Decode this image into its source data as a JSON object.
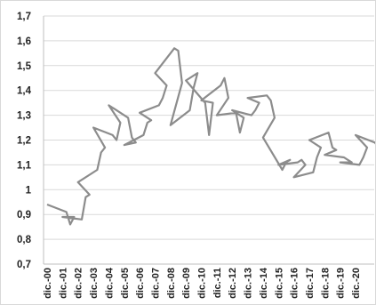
{
  "chart_data": {
    "type": "line",
    "title": "",
    "xlabel": "",
    "ylabel": "",
    "ylim": [
      0.7,
      1.7
    ],
    "yticks": [
      "0,7",
      "0,8",
      "0,9",
      "1",
      "1,1",
      "1,2",
      "1,3",
      "1,4",
      "1,5",
      "1,6",
      "1,7"
    ],
    "grid": "horizontal",
    "legend": "none",
    "line_color": "#8c8c8c",
    "x_tick_labels": [
      "dic.-00",
      "dic.-01",
      "dic.-02",
      "dic.-03",
      "dic.-04",
      "dic.-05",
      "dic.-06",
      "dic.-07",
      "dic.-08",
      "dic.-09",
      "dic.-10",
      "dic.-11",
      "dic.-12",
      "dic.-13",
      "dic.-14",
      "dic.-15",
      "dic.-16",
      "dic.-17",
      "dic.-18",
      "dic.-19",
      "dic.-20"
    ],
    "series": [
      {
        "x": [
          "dic.-00",
          "mar.-01",
          "jun.-01",
          "sep.-01",
          "dic.-01",
          "mar.-02",
          "jun.-02",
          "sep.-02",
          "dic.-02",
          "mar.-03",
          "jun.-03",
          "sep.-03",
          "dic.-03",
          "mar.-04",
          "jun.-04",
          "sep.-04",
          "dic.-04",
          "mar.-05",
          "jun.-05",
          "sep.-05",
          "dic.-05",
          "mar.-06",
          "jun.-06",
          "sep.-06",
          "dic.-06",
          "mar.-07",
          "jun.-07",
          "sep.-07",
          "dic.-07",
          "mar.-08",
          "jun.-08",
          "sep.-08",
          "dic.-08",
          "mar.-09",
          "jun.-09",
          "sep.-09",
          "dic.-09",
          "mar.-10",
          "jun.-10",
          "sep.-10",
          "dic.-10",
          "mar.-11",
          "jun.-11",
          "sep.-11",
          "dic.-11",
          "mar.-12",
          "jun.-12",
          "sep.-12",
          "dic.-12",
          "mar.-13",
          "jun.-13",
          "sep.-13",
          "dic.-13",
          "mar.-14",
          "jun.-14",
          "sep.-14",
          "dic.-14",
          "mar.-15",
          "jun.-15",
          "sep.-15",
          "dic.-15",
          "mar.-16",
          "jun.-16",
          "sep.-16",
          "dic.-16",
          "mar.-17",
          "jun.-17",
          "sep.-17",
          "dic.-17",
          "mar.-18",
          "jun.-18",
          "sep.-18",
          "dic.-18",
          "mar.-19",
          "jun.-19",
          "sep.-19",
          "dic.-19",
          "mar.-20",
          "jun.-20",
          "sep.-20",
          "dic.-20",
          "mar.-21",
          "jun.-21"
        ],
        "y": [
          0.94,
          0.91,
          0.86,
          0.89,
          0.89,
          0.88,
          0.97,
          0.98,
          1.03,
          1.08,
          1.15,
          1.17,
          1.25,
          1.22,
          1.2,
          1.27,
          1.34,
          1.29,
          1.21,
          1.19,
          1.18,
          1.22,
          1.27,
          1.28,
          1.31,
          1.34,
          1.37,
          1.42,
          1.47,
          1.57,
          1.56,
          1.43,
          1.26,
          1.32,
          1.41,
          1.47,
          1.44,
          1.35,
          1.22,
          1.35,
          1.36,
          1.42,
          1.45,
          1.37,
          1.3,
          1.31,
          1.23,
          1.29,
          1.32,
          1.3,
          1.32,
          1.35,
          1.37,
          1.38,
          1.36,
          1.29,
          1.21,
          1.08,
          1.11,
          1.12,
          1.1,
          1.11,
          1.12,
          1.1,
          1.05,
          1.07,
          1.13,
          1.17,
          1.2,
          1.23,
          1.17,
          1.16,
          1.14,
          1.13,
          1.12,
          1.11,
          1.11,
          1.1,
          1.13,
          1.17,
          1.22,
          1.19,
          1.17
        ]
      }
    ]
  }
}
